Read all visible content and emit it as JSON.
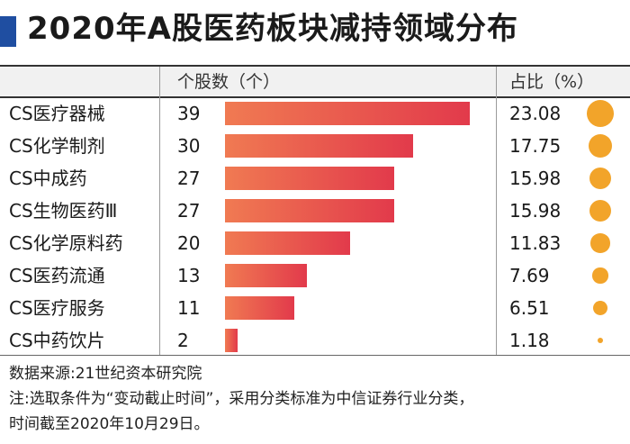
{
  "header": {
    "title": "2020年A股医药板块减持领域分布",
    "count_header": "个股数（个）",
    "share_header": "占比（%）"
  },
  "chart_data": {
    "type": "bar",
    "title": "2020年A股医药板块减持领域分布",
    "categories": [
      "CS医疗器械",
      "CS化学制剂",
      "CS中成药",
      "CS生物医药Ⅲ",
      "CS化学原料药",
      "CS医药流通",
      "CS医疗服务",
      "CS中药饮片"
    ],
    "series": [
      {
        "name": "个股数（个）",
        "values": [
          39,
          30,
          27,
          27,
          20,
          13,
          11,
          2
        ]
      },
      {
        "name": "占比（%）",
        "values": [
          "23.08",
          "17.75",
          "15.98",
          "15.98",
          "11.83",
          "7.69",
          "6.51",
          "1.18"
        ]
      }
    ],
    "xlim": [
      0,
      39
    ],
    "grid": false,
    "colors": {
      "bar_start": "#f07a52",
      "bar_end": "#e23a4b",
      "dot": "#f2a42a"
    }
  },
  "footer": {
    "source": "数据来源:21世纪资本研究院",
    "note_line1": "注:选取条件为“变动截止时间”，采用分类标准为中信证券行业分类，",
    "note_line2": "时间截至2020年10月29日。"
  }
}
